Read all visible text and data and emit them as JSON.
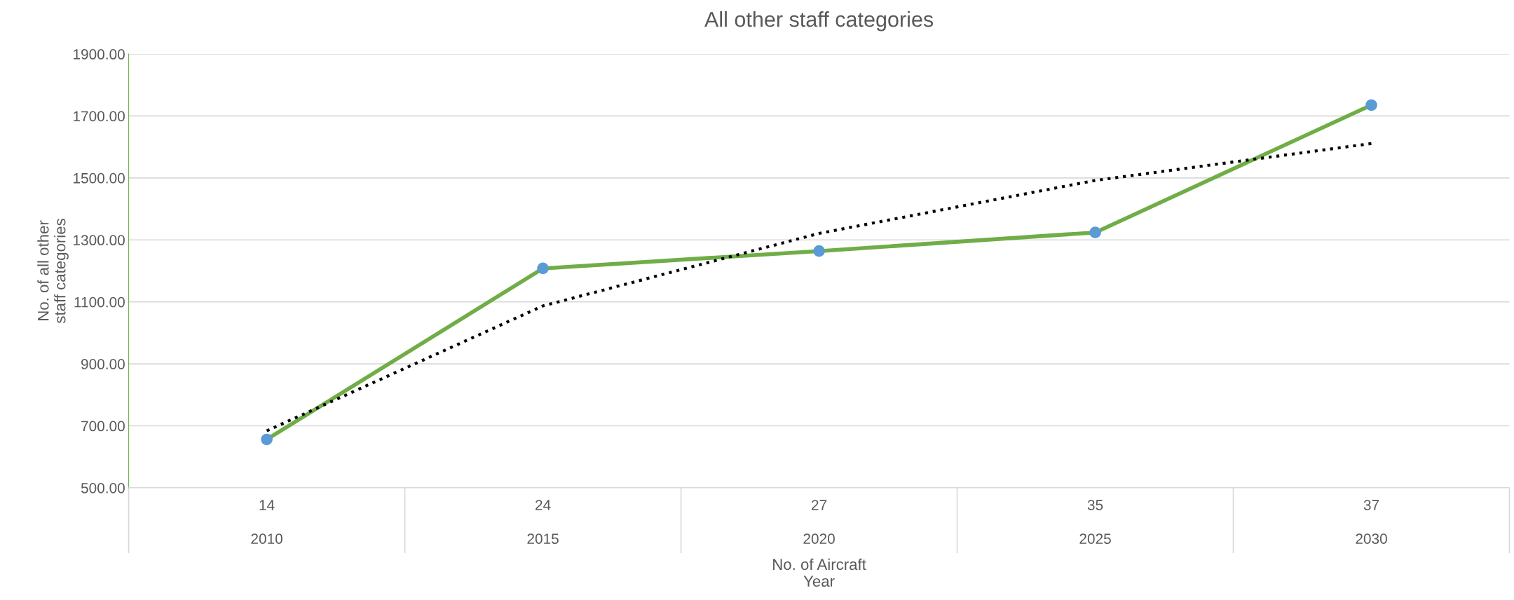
{
  "chart_data": {
    "type": "line",
    "title": "All other staff categories",
    "xlabel": "No. of Aircraft\nYear",
    "ylabel": "No. of all other\nstaff categories",
    "categories": [
      "14\n2010",
      "24\n2015",
      "27\n2020",
      "35\n2025",
      "37\n2030"
    ],
    "series": [
      {
        "color": "#70ad47",
        "colors": [
          "#5b9bd5",
          "#5b9bd5",
          "#5b9bd5",
          "#5b9bd5",
          "#5b9bd5"
        ],
        "values": [
          656,
          1208,
          1264,
          1324,
          1735
        ],
        "marker": "circle",
        "line_style": "solid"
      },
      {
        "color": "#000000",
        "values": [
          684,
          1087,
          1321,
          1492,
          1611
        ],
        "marker": "none",
        "line_style": "dotted"
      }
    ],
    "ylim": [
      500,
      1900
    ],
    "yticks": [
      {
        "value": 500,
        "label": "500.00"
      },
      {
        "value": 700,
        "label": "700.00"
      },
      {
        "value": 900,
        "label": "900.00"
      },
      {
        "value": 1100,
        "label": "1100.00"
      },
      {
        "value": 1300,
        "label": "1300.00"
      },
      {
        "value": 1500,
        "label": "1500.00"
      },
      {
        "value": 1700,
        "label": "1700.00"
      },
      {
        "value": 1900,
        "label": "1900.00"
      }
    ],
    "grid": "y",
    "legend": false
  }
}
